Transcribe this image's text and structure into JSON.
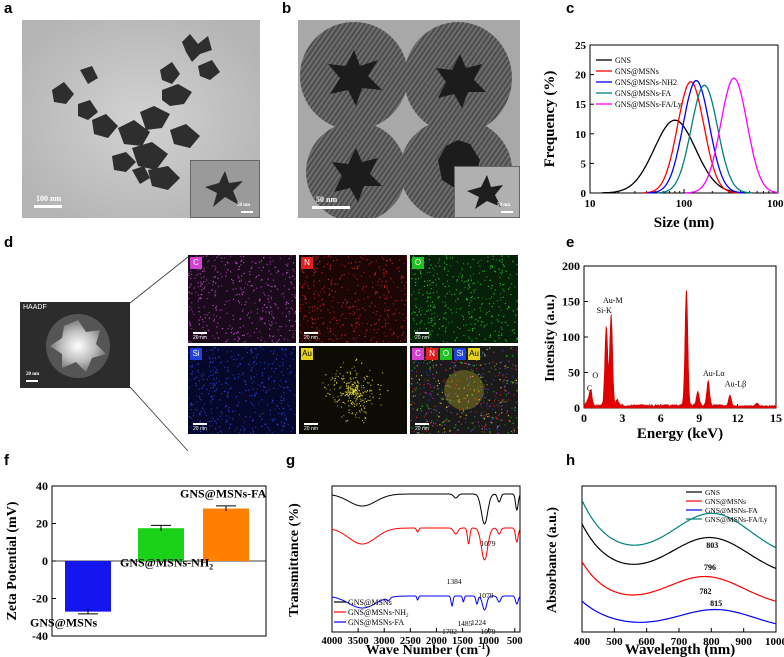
{
  "figure": {
    "panel_labels": {
      "a": "a",
      "b": "b",
      "c": "c",
      "d": "d",
      "e": "e",
      "f": "f",
      "g": "g",
      "h": "h"
    },
    "a": {
      "scalebar_text": "100 nm",
      "inset_scalebar_text": "50 nm"
    },
    "b": {
      "scalebar_text": "50 nm",
      "inset_scalebar_text": "50 nm"
    },
    "d": {
      "haadf_label": "HAADF",
      "haadf_scalebar": "20 nm",
      "maps": [
        {
          "tag": "C",
          "color": "#d43fd4",
          "bg": "#1a0a1c",
          "dot": "#c64fd0"
        },
        {
          "tag": "N",
          "color": "#e02020",
          "bg": "#1c0505",
          "dot": "#d02424"
        },
        {
          "tag": "O",
          "color": "#20c020",
          "bg": "#06200a",
          "dot": "#22c42a"
        },
        {
          "tag": "Si",
          "color": "#2040e0",
          "bg": "#05082a",
          "dot": "#2a4ae6"
        },
        {
          "tag": "Au",
          "color": "#e6d21e",
          "bg": "#0c0c05",
          "dot": "#e8dc30"
        },
        {
          "tag": "C N O Si Au",
          "color": "#ffffff",
          "bg": "#1a1a1a",
          "dot": "#cccccc"
        }
      ],
      "map_scalebar": "20 nm",
      "overlay_tags": [
        "C",
        "N",
        "O",
        "Si",
        "Au"
      ]
    }
  },
  "chart_data": [
    {
      "id": "c",
      "type": "line",
      "xscale": "log",
      "xlabel": "Size (nm)",
      "ylabel": "Frequency (%)",
      "xlim": [
        10,
        1000
      ],
      "ylim": [
        0,
        25
      ],
      "xticks": [
        "10",
        "100",
        "1000"
      ],
      "yticks": [
        "0",
        "5",
        "10",
        "15",
        "20",
        "25"
      ],
      "legend": "top-left",
      "series": [
        {
          "name": "GNS",
          "color": "#000000",
          "peak_x": 80,
          "peak_y": 12.3,
          "sigma": 0.22
        },
        {
          "name": "GNS@MSNs",
          "color": "#ff0000",
          "peak_x": 118,
          "peak_y": 18.8,
          "sigma": 0.14
        },
        {
          "name": "GNS@MSNs-NH2",
          "color": "#0000ff",
          "peak_x": 135,
          "peak_y": 19.0,
          "sigma": 0.14
        },
        {
          "name": "GNS@MSNs-FA",
          "color": "#008080",
          "peak_x": 165,
          "peak_y": 18.2,
          "sigma": 0.14
        },
        {
          "name": "GNS@MSNs-FA/Ly",
          "color": "#ff00ff",
          "peak_x": 340,
          "peak_y": 19.4,
          "sigma": 0.14
        }
      ]
    },
    {
      "id": "e",
      "type": "line",
      "xlabel": "Energy (keV)",
      "ylabel": "Intensity (a.u.)",
      "xlim": [
        0,
        15
      ],
      "ylim": [
        0,
        200
      ],
      "xticks": [
        "0",
        "3",
        "6",
        "9",
        "12",
        "15"
      ],
      "yticks": [
        "0",
        "50",
        "100",
        "150",
        "200"
      ],
      "peaks": [
        {
          "x": 0.28,
          "y": 6
        },
        {
          "x": 0.52,
          "y": 22
        },
        {
          "x": 1.74,
          "y": 112
        },
        {
          "x": 2.12,
          "y": 128
        },
        {
          "x": 2.6,
          "y": 8
        },
        {
          "x": 8.0,
          "y": 163
        },
        {
          "x": 8.9,
          "y": 20
        },
        {
          "x": 9.7,
          "y": 35
        },
        {
          "x": 11.4,
          "y": 15
        },
        {
          "x": 13.5,
          "y": 4
        }
      ],
      "annotations": [
        "C",
        "O",
        "Au-M",
        "Si-K",
        "Au-Lα",
        "Au-Lβ"
      ]
    },
    {
      "id": "f",
      "type": "bar",
      "ylabel": "Zeta Potential (mV)",
      "ylim": [
        -40,
        40
      ],
      "yticks": [
        "40",
        "20",
        "0",
        "-20",
        "-40"
      ],
      "categories": [
        "GNS@MSNs",
        "GNS@MSNs-NH2",
        "GNS@MSNs-FA"
      ],
      "values": [
        -27,
        17.5,
        28
      ],
      "errors": [
        1.2,
        1.5,
        1.4
      ],
      "colors": [
        "#1515f0",
        "#19d219",
        "#ff8000"
      ],
      "bar_labels": [
        "GNS@MSNs",
        "GNS@MSNs-NH",
        "GNS@MSNs-FA"
      ]
    },
    {
      "id": "g",
      "type": "line",
      "xlabel": "Wave Number (cm",
      "xlabel_sup": "-1",
      "ylabel": "Transmittance (%)",
      "xlim": [
        4000,
        400
      ],
      "xticks": [
        "4000",
        "3500",
        "3000",
        "2500",
        "2000",
        "1500",
        "1000",
        "500"
      ],
      "legend_items": [
        {
          "name": "GNS@MSNs",
          "color": "#000000"
        },
        {
          "name": "GNS@MSNs-NH",
          "color": "#ff0000"
        },
        {
          "name": "GNS@MSNs-FA",
          "color": "#0000ff"
        }
      ],
      "annotations": [
        "1079",
        "1384",
        "1079",
        "1702",
        "1485",
        "1224",
        "1079"
      ]
    },
    {
      "id": "h",
      "type": "line",
      "xlabel": "Wavelength (nm)",
      "ylabel": "Absorbance (a.u.)",
      "xlim": [
        400,
        1000
      ],
      "xticks": [
        "400",
        "500",
        "600",
        "700",
        "800",
        "900",
        "1000"
      ],
      "series": [
        {
          "name": "GNS",
          "color": "#000000",
          "peak": 796
        },
        {
          "name": "GNS@MSNs",
          "color": "#ff0000",
          "peak": 782
        },
        {
          "name": "GNS@MSNs-FA",
          "color": "#0000ff",
          "peak": 815
        },
        {
          "name": "GNS@MSNs-FA/Ly",
          "color": "#008080",
          "peak": 803
        }
      ],
      "peak_labels": [
        "803",
        "796",
        "782",
        "815"
      ]
    }
  ]
}
